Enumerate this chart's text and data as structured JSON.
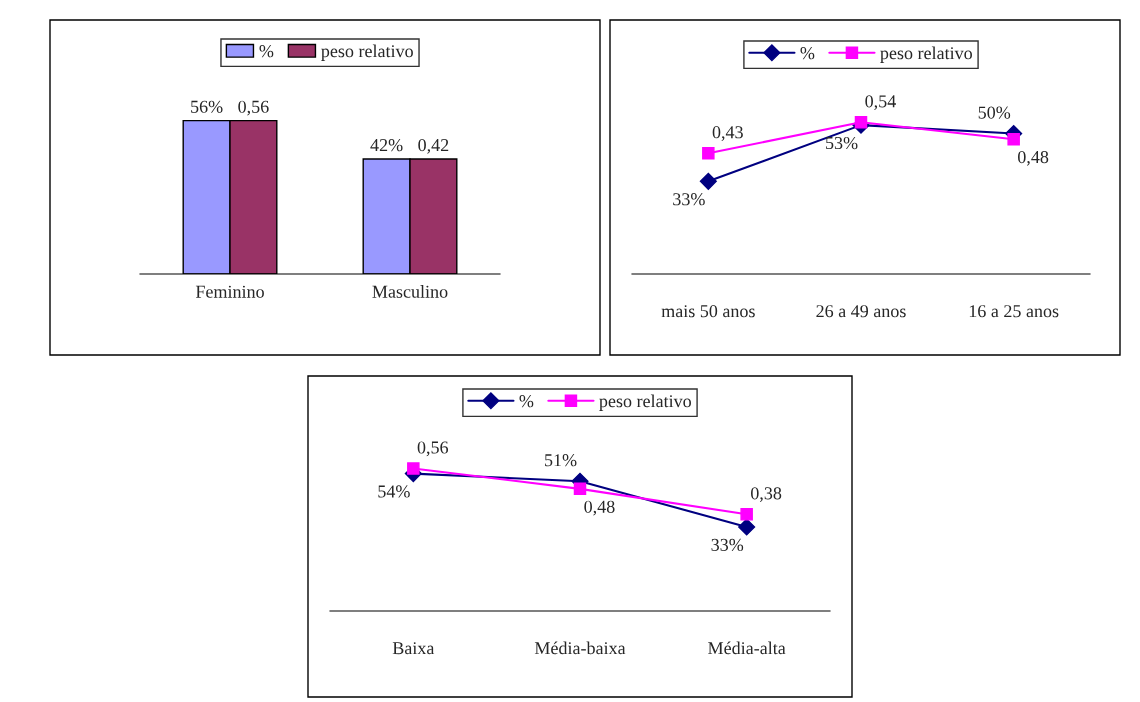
{
  "chart_data": [
    {
      "type": "bar",
      "categories": [
        "Feminino",
        "Masculino"
      ],
      "legend": "top",
      "series": [
        {
          "name": "%",
          "color": "#9999ff",
          "values": [
            0.56,
            0.42
          ],
          "value_labels": [
            "56%",
            "42%"
          ]
        },
        {
          "name": "peso relativo",
          "color": "#993366",
          "values": [
            0.56,
            0.42
          ],
          "value_labels": [
            "0,56",
            "0,42"
          ]
        }
      ]
    },
    {
      "type": "line",
      "categories": [
        "mais 50 anos",
        "26 a 49 anos",
        "16 a 25 anos"
      ],
      "legend": "top",
      "series": [
        {
          "name": "%",
          "color": "#000080",
          "marker": "diamond",
          "values": [
            0.33,
            0.53,
            0.5
          ],
          "value_labels": [
            "33%",
            "53%",
            "50%"
          ]
        },
        {
          "name": "peso relativo",
          "color": "#ff00ff",
          "marker": "square",
          "values": [
            0.43,
            0.54,
            0.48
          ],
          "value_labels": [
            "0,43",
            "0,54",
            "0,48"
          ]
        }
      ]
    },
    {
      "type": "line",
      "categories": [
        "Baixa",
        "Média-baixa",
        "Média-alta"
      ],
      "legend": "top",
      "series": [
        {
          "name": "%",
          "color": "#000080",
          "marker": "diamond",
          "values": [
            0.54,
            0.51,
            0.33
          ],
          "value_labels": [
            "54%",
            "51%",
            "33%"
          ]
        },
        {
          "name": "peso relativo",
          "color": "#ff00ff",
          "marker": "square",
          "values": [
            0.56,
            0.48,
            0.38
          ],
          "value_labels": [
            "0,56",
            "0,48",
            "0,38"
          ]
        }
      ]
    }
  ]
}
